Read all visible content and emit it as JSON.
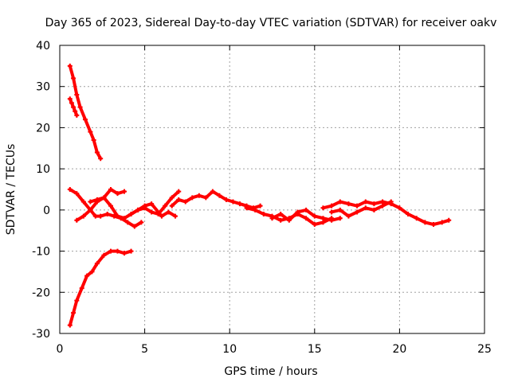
{
  "chart_data": {
    "type": "line",
    "title": "Day 365 of 2023, Sidereal Day-to-day VTEC variation (SDTVAR) for receiver oakv",
    "xlabel": "GPS time / hours",
    "ylabel": "SDTVAR / TECUs",
    "xlim": [
      0,
      25
    ],
    "ylim": [
      -30,
      40
    ],
    "xticks": [
      0,
      5,
      10,
      15,
      20,
      25
    ],
    "yticks": [
      -30,
      -20,
      -10,
      0,
      10,
      20,
      30,
      40
    ],
    "grid": true,
    "color": "#ff0000",
    "series": [
      {
        "name": "trace-1",
        "x": [
          0.6,
          0.8,
          1.0,
          1.2,
          1.5,
          1.8,
          2.0,
          2.2,
          2.4
        ],
        "y": [
          35,
          32,
          28,
          25,
          22,
          19,
          17,
          14,
          12.5
        ]
      },
      {
        "name": "trace-2",
        "x": [
          0.6,
          0.7,
          0.8,
          0.9,
          1.0
        ],
        "y": [
          27,
          26,
          25,
          24,
          23
        ]
      },
      {
        "name": "trace-3",
        "x": [
          0.6,
          0.8,
          1.0,
          1.3,
          1.6,
          1.9,
          2.2,
          2.6,
          3.0,
          3.4,
          3.8,
          4.2
        ],
        "y": [
          -28,
          -25,
          -22,
          -19,
          -16,
          -15,
          -13,
          -11,
          -10,
          -10,
          -10.5,
          -10
        ]
      },
      {
        "name": "trace-4",
        "x": [
          0.6,
          1.0,
          1.4,
          1.8,
          2.1,
          2.4,
          2.8,
          3.2,
          3.6,
          4.0,
          4.4,
          4.8
        ],
        "y": [
          5,
          4,
          2,
          0,
          -1.5,
          -1.5,
          -1,
          -1.5,
          -2,
          -3,
          -4,
          -3
        ]
      },
      {
        "name": "trace-5",
        "x": [
          1.0,
          1.4,
          1.8,
          2.2,
          2.6,
          3.0,
          3.4,
          3.8
        ],
        "y": [
          -2.5,
          -1.5,
          0,
          2,
          3,
          5,
          4,
          4.5
        ]
      },
      {
        "name": "trace-6",
        "x": [
          1.8,
          2.2,
          2.6,
          3.0,
          3.4,
          3.8,
          4.2,
          4.6,
          5.0,
          5.4,
          5.8,
          6.2,
          6.6,
          7.0
        ],
        "y": [
          2,
          2.5,
          3,
          1,
          -1.5,
          -2,
          -1,
          0,
          0.5,
          -0.5,
          -1,
          1,
          3,
          4.5
        ]
      },
      {
        "name": "trace-7",
        "x": [
          4.2,
          4.6,
          5.0,
          5.4,
          6.0,
          6.4,
          6.8
        ],
        "y": [
          -1,
          0,
          1,
          1.5,
          -1.5,
          -0.5,
          -1.5
        ]
      },
      {
        "name": "trace-8",
        "x": [
          6.6,
          7.0,
          7.4,
          7.8,
          8.2,
          8.6,
          9.0,
          9.4,
          9.8,
          10.2,
          10.6,
          11.0,
          11.4,
          11.8
        ],
        "y": [
          1,
          2.5,
          2,
          3,
          3.5,
          3,
          4.5,
          3.5,
          2.5,
          2,
          1.5,
          1,
          0.5,
          1
        ]
      },
      {
        "name": "trace-9",
        "x": [
          11.0,
          11.5,
          12.0,
          12.5,
          13.0,
          13.5,
          14.0,
          14.5,
          15.0,
          15.5,
          16.0
        ],
        "y": [
          0.5,
          0,
          -1,
          -1.5,
          -2.5,
          -2,
          -1,
          -2,
          -3.5,
          -3,
          -2
        ]
      },
      {
        "name": "trace-10",
        "x": [
          12.5,
          13.0,
          13.5,
          14.0,
          14.5,
          15.0,
          15.5,
          16.0,
          16.5
        ],
        "y": [
          -2,
          -1,
          -2.5,
          -0.5,
          0,
          -1.5,
          -2,
          -2.5,
          -2
        ]
      },
      {
        "name": "trace-11",
        "x": [
          15.5,
          16.0,
          16.5,
          17.0,
          17.5,
          18.0,
          18.5,
          19.0,
          19.5,
          20.0,
          20.5,
          21.0,
          21.5,
          22.0,
          22.5,
          22.9
        ],
        "y": [
          0.5,
          1,
          2,
          1.5,
          1,
          2,
          1.5,
          2,
          1.5,
          0.5,
          -1,
          -2,
          -3,
          -3.5,
          -3,
          -2.5
        ]
      },
      {
        "name": "trace-12",
        "x": [
          16.0,
          16.5,
          17.0,
          17.5,
          18.0,
          18.5,
          19.0,
          19.5
        ],
        "y": [
          -0.5,
          0,
          -1.5,
          -0.5,
          0.5,
          0,
          1,
          2
        ]
      }
    ]
  }
}
